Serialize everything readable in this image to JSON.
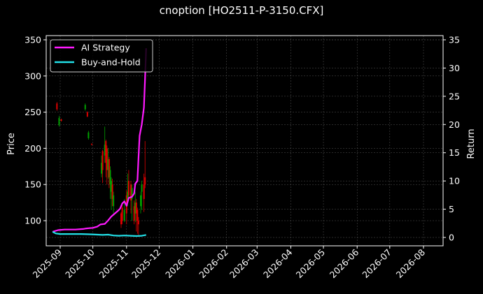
{
  "chart_data": {
    "type": "candlestick+line",
    "title": "cnoption [HO2511-P-3150.CFX]",
    "xlabel": "",
    "ylabel_left": "Price",
    "ylabel_right": "Return",
    "ylim_left": [
      65,
      355
    ],
    "ylim_right": [
      -1,
      35.5
    ],
    "yticks_left": [
      100,
      150,
      200,
      250,
      300,
      350
    ],
    "yticks_right": [
      0,
      5,
      10,
      15,
      20,
      25,
      30,
      35
    ],
    "xticks": [
      "2025-09",
      "2025-10",
      "2025-11",
      "2025-12",
      "2026-01",
      "2026-02",
      "2026-03",
      "2026-04",
      "2026-05",
      "2026-06",
      "2026-07",
      "2026-08"
    ],
    "grid": true,
    "legend_position": "upper left",
    "legend": [
      {
        "label": "AI Strategy",
        "color": "#ff00ff"
      },
      {
        "label": "Buy-and-Hold",
        "color": "#00e5ee"
      }
    ],
    "colors": {
      "background": "#000000",
      "up_candle": "#00a000",
      "down_candle": "#e00000",
      "ai_strategy": "#ff1aff",
      "buy_and_hold": "#22e0e8",
      "grid": "#555555",
      "axis": "#ffffff"
    },
    "candles": [
      {
        "date": "2025-08-29",
        "open": 262,
        "close": 254,
        "high": 264,
        "low": 252
      },
      {
        "date": "2025-08-31",
        "open": 232,
        "close": 242,
        "high": 245,
        "low": 230
      },
      {
        "date": "2025-09-02",
        "open": 240,
        "close": 238,
        "high": 241,
        "low": 237
      },
      {
        "date": "2025-09-24",
        "open": 254,
        "close": 260,
        "high": 262,
        "low": 252
      },
      {
        "date": "2025-09-26",
        "open": 250,
        "close": 244,
        "high": 251,
        "low": 243
      },
      {
        "date": "2025-09-27",
        "open": 214,
        "close": 222,
        "high": 224,
        "low": 212
      },
      {
        "date": "2025-09-30",
        "open": 206,
        "close": 205,
        "high": 207,
        "low": 204
      },
      {
        "date": "2025-10-09",
        "open": 165,
        "close": 180,
        "high": 190,
        "low": 160
      },
      {
        "date": "2025-10-10",
        "open": 196,
        "close": 170,
        "high": 198,
        "low": 152
      },
      {
        "date": "2025-10-12",
        "open": 190,
        "close": 205,
        "high": 230,
        "low": 180
      },
      {
        "date": "2025-10-13",
        "open": 210,
        "close": 180,
        "high": 212,
        "low": 160
      },
      {
        "date": "2025-10-14",
        "open": 200,
        "close": 170,
        "high": 204,
        "low": 150
      },
      {
        "date": "2025-10-15",
        "open": 170,
        "close": 185,
        "high": 200,
        "low": 158
      },
      {
        "date": "2025-10-16",
        "open": 185,
        "close": 160,
        "high": 188,
        "low": 145
      },
      {
        "date": "2025-10-17",
        "open": 150,
        "close": 170,
        "high": 175,
        "low": 130
      },
      {
        "date": "2025-10-18",
        "open": 140,
        "close": 155,
        "high": 160,
        "low": 115
      },
      {
        "date": "2025-10-19",
        "open": 150,
        "close": 130,
        "high": 158,
        "low": 120
      },
      {
        "date": "2025-10-20",
        "open": 120,
        "close": 135,
        "high": 140,
        "low": 110
      },
      {
        "date": "2025-10-27",
        "open": 110,
        "close": 95,
        "high": 112,
        "low": 90
      },
      {
        "date": "2025-10-28",
        "open": 118,
        "close": 100,
        "high": 122,
        "low": 95
      },
      {
        "date": "2025-10-30",
        "open": 100,
        "close": 115,
        "high": 130,
        "low": 98
      },
      {
        "date": "2025-11-01",
        "open": 135,
        "close": 110,
        "high": 142,
        "low": 95
      },
      {
        "date": "2025-11-02",
        "open": 125,
        "close": 140,
        "high": 165,
        "low": 120
      },
      {
        "date": "2025-11-03",
        "open": 155,
        "close": 135,
        "high": 170,
        "low": 130
      },
      {
        "date": "2025-11-05",
        "open": 150,
        "close": 128,
        "high": 155,
        "low": 110
      },
      {
        "date": "2025-11-06",
        "open": 130,
        "close": 145,
        "high": 150,
        "low": 100
      },
      {
        "date": "2025-11-08",
        "open": 120,
        "close": 100,
        "high": 128,
        "low": 95
      },
      {
        "date": "2025-11-09",
        "open": 110,
        "close": 125,
        "high": 140,
        "low": 98
      },
      {
        "date": "2025-11-10",
        "open": 125,
        "close": 110,
        "high": 130,
        "low": 85
      },
      {
        "date": "2025-11-11",
        "open": 115,
        "close": 100,
        "high": 118,
        "low": 82
      },
      {
        "date": "2025-11-12",
        "open": 100,
        "close": 95,
        "high": 105,
        "low": 80
      },
      {
        "date": "2025-11-14",
        "open": 120,
        "close": 135,
        "high": 140,
        "low": 110
      },
      {
        "date": "2025-11-15",
        "open": 140,
        "close": 150,
        "high": 155,
        "low": 115
      },
      {
        "date": "2025-11-17",
        "open": 150,
        "close": 130,
        "high": 165,
        "low": 112
      },
      {
        "date": "2025-11-18",
        "open": 160,
        "close": 150,
        "high": 210,
        "low": 145
      }
    ],
    "series": [
      {
        "name": "AI Strategy",
        "axis": "right",
        "x": [
          "2025-08-25",
          "2025-08-30",
          "2025-09-05",
          "2025-09-15",
          "2025-09-22",
          "2025-09-25",
          "2025-10-01",
          "2025-10-05",
          "2025-10-08",
          "2025-10-12",
          "2025-10-15",
          "2025-10-18",
          "2025-10-21",
          "2025-10-24",
          "2025-10-26",
          "2025-10-28",
          "2025-10-30",
          "2025-11-01",
          "2025-11-03",
          "2025-11-06",
          "2025-11-08",
          "2025-11-09",
          "2025-11-11",
          "2025-11-13",
          "2025-11-15",
          "2025-11-17",
          "2025-11-18",
          "2025-11-19"
        ],
        "values": [
          1.0,
          1.3,
          1.4,
          1.4,
          1.5,
          1.6,
          1.7,
          1.9,
          2.3,
          2.4,
          3.0,
          3.7,
          4.2,
          4.7,
          5.1,
          6.0,
          6.4,
          5.6,
          7.0,
          7.2,
          7.8,
          9.5,
          10.0,
          18.0,
          20.0,
          23.0,
          28.0,
          33.5
        ]
      },
      {
        "name": "Buy-and-Hold",
        "axis": "right",
        "x": [
          "2025-08-25",
          "2025-08-28",
          "2025-09-01",
          "2025-09-10",
          "2025-09-20",
          "2025-09-30",
          "2025-10-10",
          "2025-10-15",
          "2025-10-20",
          "2025-10-25",
          "2025-10-30",
          "2025-11-05",
          "2025-11-10",
          "2025-11-15",
          "2025-11-19"
        ],
        "values": [
          1.0,
          0.7,
          0.6,
          0.6,
          0.6,
          0.55,
          0.45,
          0.5,
          0.35,
          0.3,
          0.35,
          0.3,
          0.25,
          0.3,
          0.45
        ]
      }
    ]
  }
}
